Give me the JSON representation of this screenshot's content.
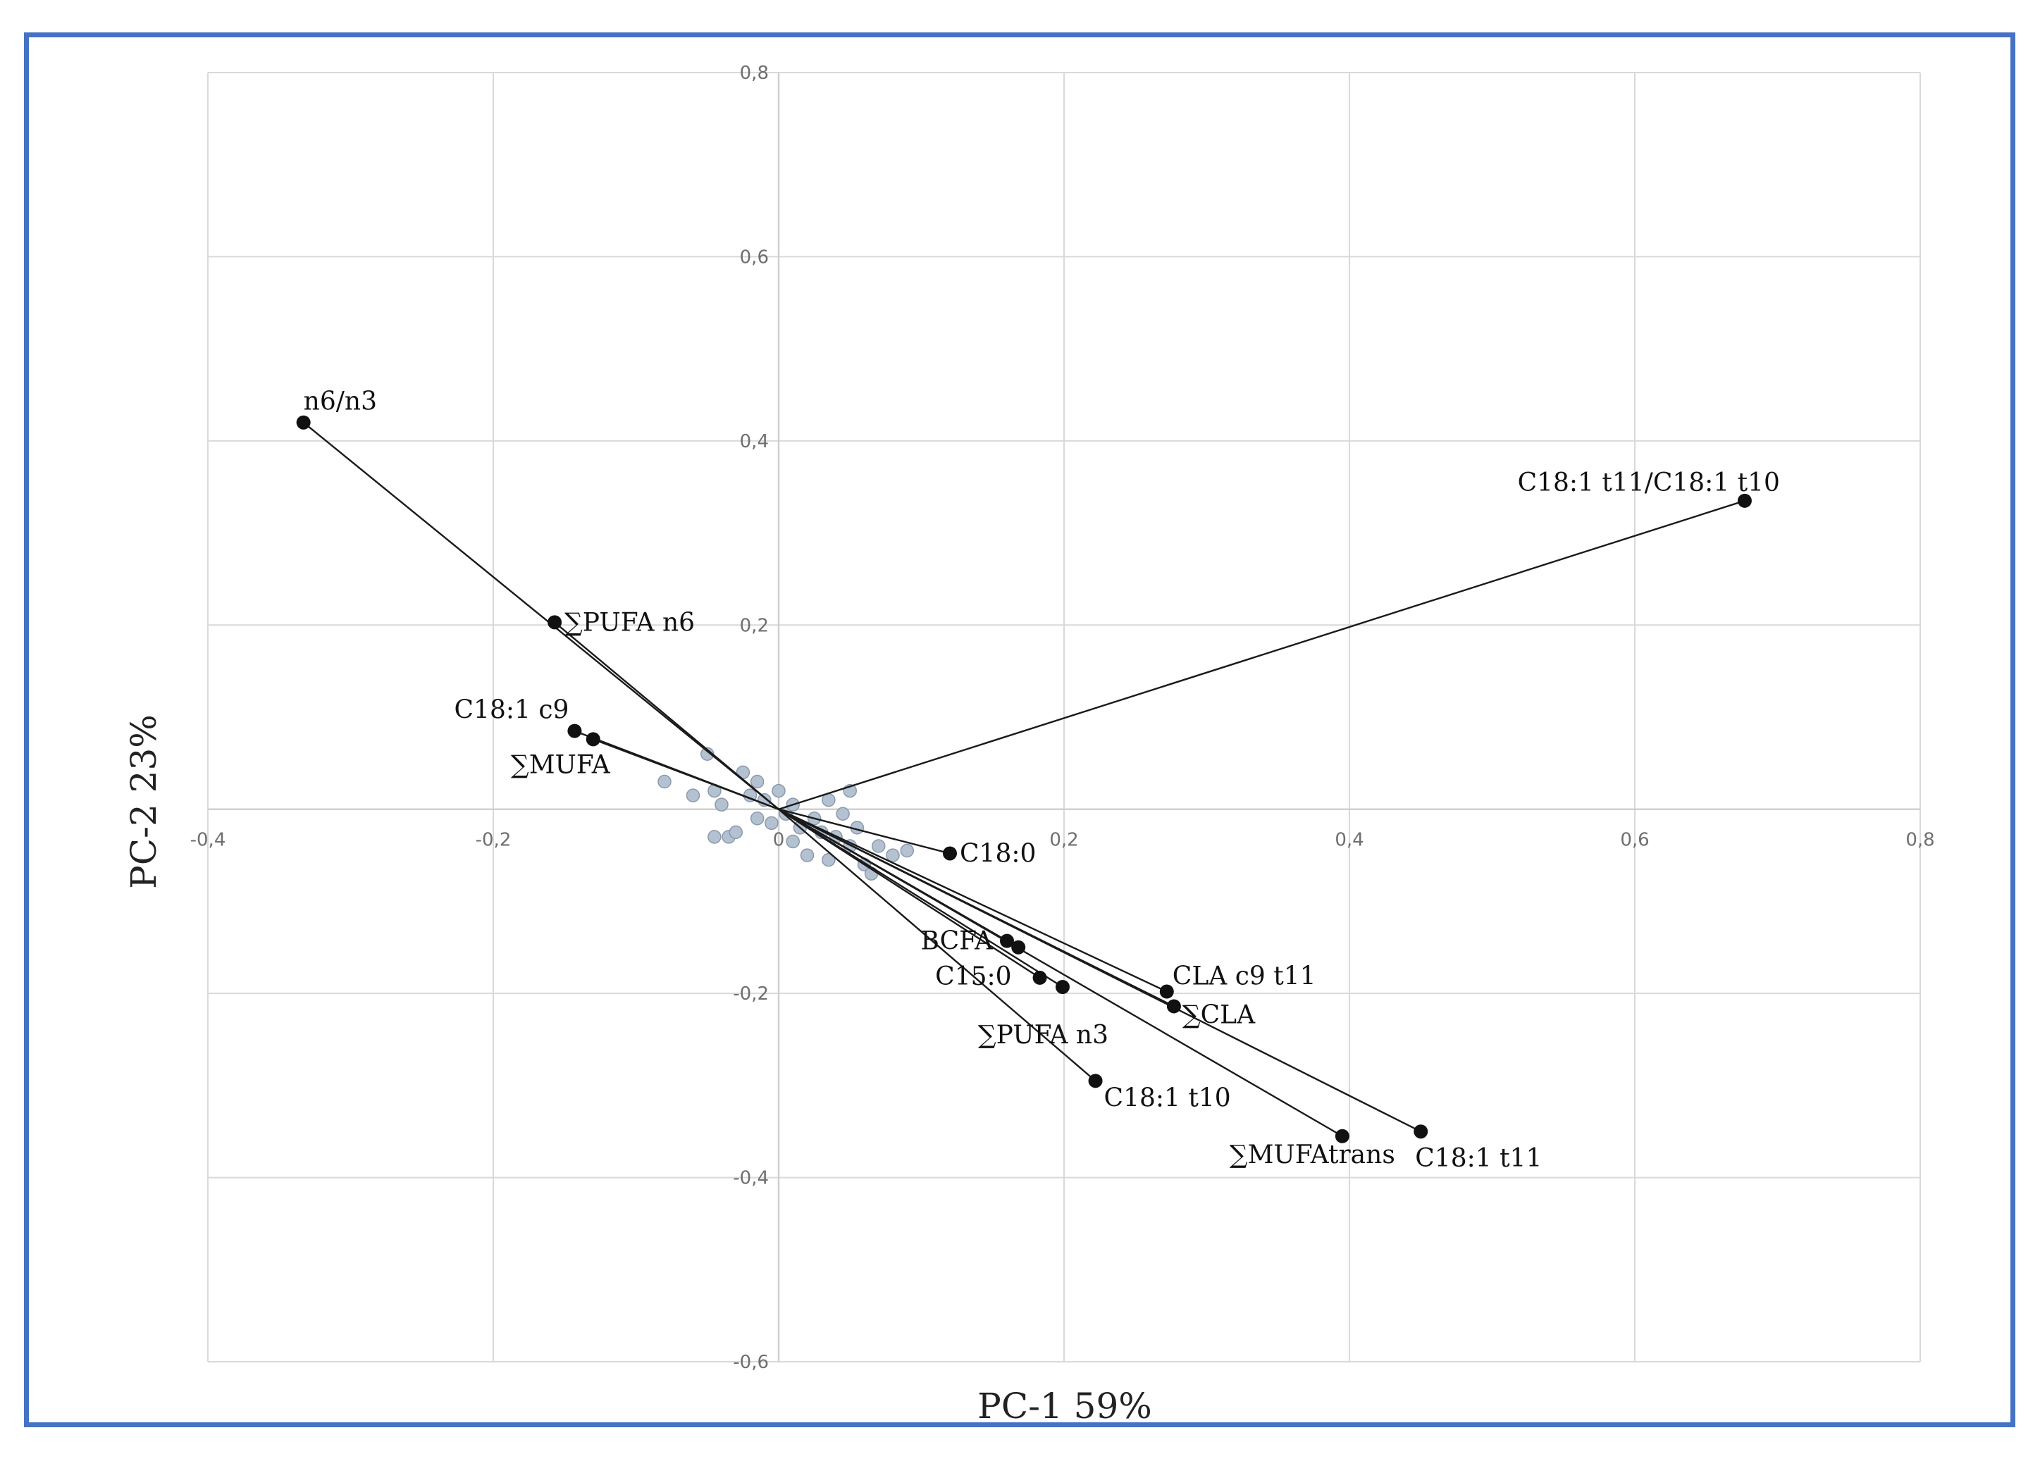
{
  "chart_data": {
    "type": "scatter",
    "subtype": "pca-biplot",
    "xlabel": "PC-1 59%",
    "ylabel": "PC-2 23%",
    "xlim": [
      -0.4,
      0.8
    ],
    "ylim": [
      -0.6,
      0.8
    ],
    "x_ticks": [
      -0.4,
      -0.2,
      0,
      0.2,
      0.4,
      0.6,
      0.8
    ],
    "y_ticks": [
      -0.6,
      -0.4,
      -0.2,
      0.2,
      0.4,
      0.6,
      0.8
    ],
    "x_tick_labels": [
      "-0,4",
      "-0,2",
      "0",
      "0,2",
      "0,4",
      "0,6",
      "0,8"
    ],
    "y_tick_labels": [
      "-0,6",
      "-0,4",
      "-0,2",
      "0,2",
      "0,4",
      "0,6",
      "0,8"
    ],
    "grid": true,
    "loadings": [
      {
        "name": "n6/n3",
        "x": -0.333,
        "y": 0.42
      },
      {
        "name": "∑PUFA n6",
        "x": -0.157,
        "y": 0.203
      },
      {
        "name": "C18:1 c9",
        "x": -0.143,
        "y": 0.085
      },
      {
        "name": "∑MUFA",
        "x": -0.13,
        "y": 0.076
      },
      {
        "name": "C18:1 t11/C18:1 t10",
        "x": 0.677,
        "y": 0.335
      },
      {
        "name": "C18:0",
        "x": 0.12,
        "y": -0.048
      },
      {
        "name": "BCFA",
        "x": 0.16,
        "y": -0.143
      },
      {
        "name": "",
        "x": 0.168,
        "y": -0.15
      },
      {
        "name": "C15:0",
        "x": 0.183,
        "y": -0.183
      },
      {
        "name": "∑PUFA n3",
        "x": 0.199,
        "y": -0.193
      },
      {
        "name": "CLA c9 t11",
        "x": 0.272,
        "y": -0.198
      },
      {
        "name": "∑CLA",
        "x": 0.277,
        "y": -0.214
      },
      {
        "name": "C18:1 t10",
        "x": 0.222,
        "y": -0.295
      },
      {
        "name": "∑MUFAtrans",
        "x": 0.395,
        "y": -0.355
      },
      {
        "name": "C18:1 t11",
        "x": 0.45,
        "y": -0.35
      }
    ],
    "observations": [
      {
        "x": -0.08,
        "y": 0.03
      },
      {
        "x": -0.06,
        "y": 0.015
      },
      {
        "x": -0.05,
        "y": 0.06
      },
      {
        "x": -0.045,
        "y": 0.02
      },
      {
        "x": -0.04,
        "y": 0.005
      },
      {
        "x": -0.035,
        "y": -0.03
      },
      {
        "x": -0.03,
        "y": -0.025
      },
      {
        "x": -0.02,
        "y": 0.015
      },
      {
        "x": -0.015,
        "y": 0.03
      },
      {
        "x": -0.01,
        "y": 0.01
      },
      {
        "x": -0.005,
        "y": -0.015
      },
      {
        "x": 0.0,
        "y": 0.02
      },
      {
        "x": 0.005,
        "y": -0.005
      },
      {
        "x": 0.01,
        "y": 0.005
      },
      {
        "x": 0.015,
        "y": -0.02
      },
      {
        "x": 0.02,
        "y": -0.05
      },
      {
        "x": 0.025,
        "y": -0.01
      },
      {
        "x": 0.03,
        "y": -0.025
      },
      {
        "x": 0.035,
        "y": 0.01
      },
      {
        "x": 0.04,
        "y": -0.03
      },
      {
        "x": 0.045,
        "y": -0.005
      },
      {
        "x": 0.05,
        "y": -0.04
      },
      {
        "x": 0.05,
        "y": 0.02
      },
      {
        "x": 0.055,
        "y": -0.02
      },
      {
        "x": 0.06,
        "y": -0.06
      },
      {
        "x": 0.07,
        "y": -0.04
      },
      {
        "x": 0.08,
        "y": -0.05
      },
      {
        "x": 0.09,
        "y": -0.045
      },
      {
        "x": -0.025,
        "y": 0.04
      },
      {
        "x": 0.01,
        "y": -0.035
      },
      {
        "x": 0.035,
        "y": -0.055
      },
      {
        "x": -0.045,
        "y": -0.03
      },
      {
        "x": 0.065,
        "y": -0.07
      },
      {
        "x": -0.015,
        "y": -0.01
      }
    ]
  }
}
